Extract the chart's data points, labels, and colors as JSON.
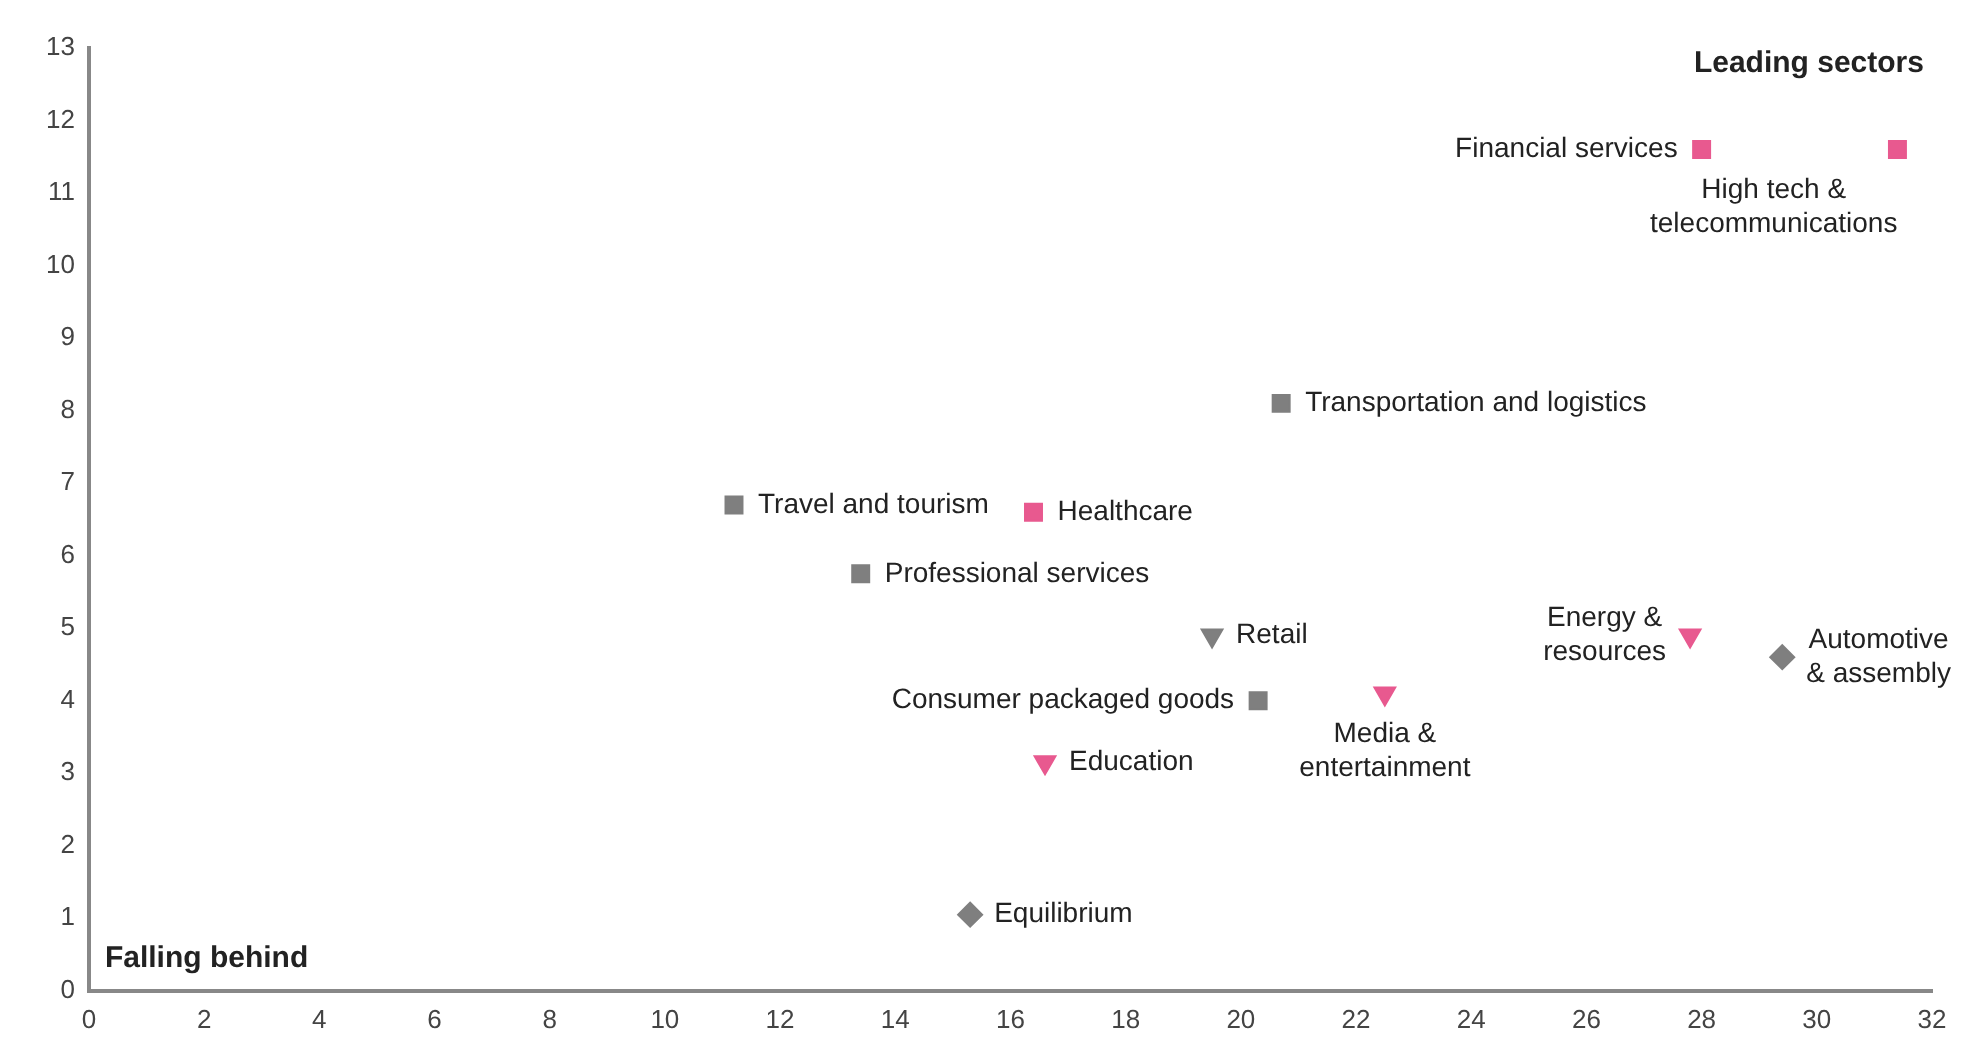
{
  "chart_data": {
    "type": "scatter",
    "xlim": [
      0,
      32
    ],
    "xticks": [
      0,
      2,
      4,
      6,
      8,
      10,
      12,
      14,
      16,
      18,
      20,
      22,
      24,
      26,
      28,
      30,
      32
    ],
    "ylim": [
      0,
      13
    ],
    "yticks": [
      0,
      1,
      2,
      3,
      4,
      5,
      6,
      7,
      8,
      9,
      10,
      11,
      12,
      13
    ],
    "grid": false,
    "legend": false,
    "series": [
      {
        "color": "#7f7f7f",
        "marker": "square",
        "x": [
          11.2,
          13.4,
          20.3,
          20.7
        ],
        "values": [
          6.7,
          5.75,
          4.0,
          8.1
        ]
      },
      {
        "color": "#e8598f",
        "marker": "square",
        "x": [
          16.4,
          28.0,
          31.4
        ],
        "values": [
          6.6,
          11.6,
          11.6
        ]
      },
      {
        "color": "#e8598f",
        "marker": "triangle",
        "x": [
          16.6,
          27.8,
          22.5
        ],
        "values": [
          3.15,
          4.9,
          4.1
        ]
      },
      {
        "color": "#7f7f7f",
        "marker": "triangle",
        "x": [
          19.5
        ],
        "values": [
          4.9
        ]
      },
      {
        "color": "#7f7f7f",
        "marker": "diamond",
        "x": [
          15.3,
          29.4
        ],
        "values": [
          1.05,
          4.6
        ]
      }
    ],
    "annotations": [
      "Leading sectors",
      "Falling behind",
      {
        "text": "Financial services",
        "x": 28.0,
        "y": 11.6
      },
      {
        "text": "High tech &\ntelecommunications",
        "x": 31.4,
        "y": 11.6
      },
      {
        "text": "Transportation and logistics",
        "x": 20.7,
        "y": 8.1
      },
      {
        "text": "Travel and tourism",
        "x": 11.2,
        "y": 6.7
      },
      {
        "text": "Healthcare",
        "x": 16.4,
        "y": 6.6
      },
      {
        "text": "Professional services",
        "x": 13.4,
        "y": 5.75
      },
      {
        "text": "Retail",
        "x": 19.5,
        "y": 4.9
      },
      {
        "text": "Consumer packaged goods",
        "x": 20.3,
        "y": 4.0
      },
      {
        "text": "Education",
        "x": 16.6,
        "y": 3.15
      },
      {
        "text": "Equilibrium",
        "x": 15.3,
        "y": 1.05
      },
      {
        "text": "Energy &\nresources",
        "x": 27.8,
        "y": 4.9
      },
      {
        "text": "Media &\nentertainment",
        "x": 22.5,
        "y": 4.1
      },
      {
        "text": "Automotive\n& assembly",
        "x": 29.4,
        "y": 4.6
      }
    ]
  }
}
